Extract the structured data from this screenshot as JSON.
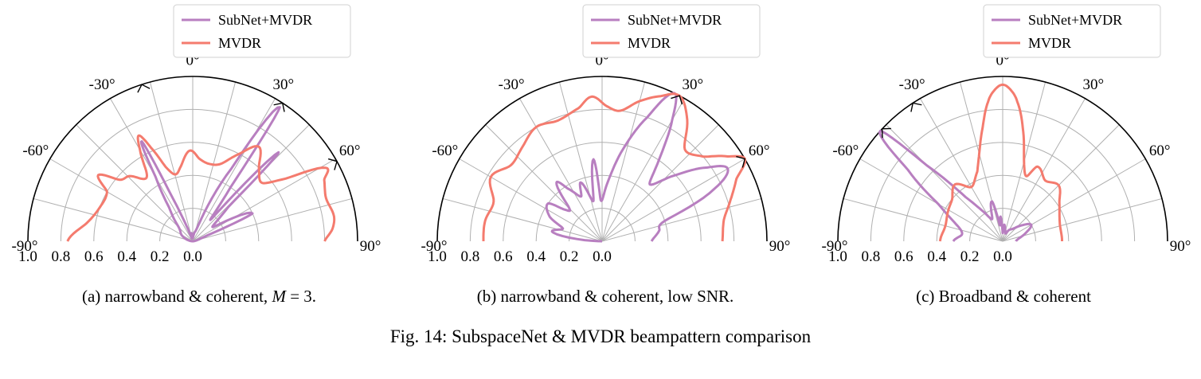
{
  "figure": {
    "caption": "Fig. 14: SubspaceNet & MVDR beampattern comparison",
    "subcaptions": [
      {
        "prefix": "(a) narrowband & coherent, ",
        "var": "M",
        "suffix": " = 3."
      },
      {
        "prefix": "(b) narrowband & coherent, low SNR.",
        "var": "",
        "suffix": ""
      },
      {
        "prefix": "(c) Broadband & coherent",
        "var": "",
        "suffix": ""
      }
    ]
  },
  "colors": {
    "subnet": "#b87fc0",
    "mvdr": "#f47b6e",
    "grid": "#b0b0b0",
    "axis": "#000000"
  },
  "chart_data": [
    {
      "type": "polar-line",
      "theta_range_deg": [
        -90,
        90
      ],
      "theta_ticks": [
        "-90°",
        "-60°",
        "-30°",
        "0°",
        "30°",
        "60°",
        "90°"
      ],
      "r_ticks": [
        "1.0",
        "0.8",
        "0.6",
        "0.4",
        "0.2",
        "0.0"
      ],
      "r_range": [
        0,
        1
      ],
      "grid": true,
      "legend_position": "top-center",
      "true_doa_markers_deg": [
        -18,
        33,
        61
      ],
      "series": [
        {
          "name": "SubNet+MVDR",
          "color_key": "subnet",
          "points": [
            [
              -90,
              0.0
            ],
            [
              -80,
              0.02
            ],
            [
              -70,
              0.05
            ],
            [
              -60,
              0.08
            ],
            [
              -45,
              0.12
            ],
            [
              -35,
              0.25
            ],
            [
              -30,
              0.45
            ],
            [
              -27,
              0.68
            ],
            [
              -25,
              0.3
            ],
            [
              -22,
              0.1
            ],
            [
              -18,
              0.02
            ],
            [
              -10,
              0.05
            ],
            [
              -5,
              0.03
            ],
            [
              0,
              0.02
            ],
            [
              10,
              0.05
            ],
            [
              20,
              0.12
            ],
            [
              28,
              0.5
            ],
            [
              33,
              0.97
            ],
            [
              35,
              0.4
            ],
            [
              40,
              0.18
            ],
            [
              44,
              0.75
            ],
            [
              46,
              0.3
            ],
            [
              55,
              0.15
            ],
            [
              65,
              0.4
            ],
            [
              68,
              0.1
            ],
            [
              75,
              0.03
            ],
            [
              90,
              0.0
            ]
          ]
        },
        {
          "name": "MVDR",
          "color_key": "mvdr",
          "points": [
            [
              -90,
              0.76
            ],
            [
              -80,
              0.65
            ],
            [
              -70,
              0.6
            ],
            [
              -60,
              0.6
            ],
            [
              -55,
              0.7
            ],
            [
              -50,
              0.58
            ],
            [
              -44,
              0.55
            ],
            [
              -38,
              0.48
            ],
            [
              -34,
              0.5
            ],
            [
              -30,
              0.64
            ],
            [
              -27,
              0.72
            ],
            [
              -24,
              0.62
            ],
            [
              -20,
              0.48
            ],
            [
              -15,
              0.42
            ],
            [
              -10,
              0.45
            ],
            [
              -2,
              0.55
            ],
            [
              5,
              0.5
            ],
            [
              12,
              0.48
            ],
            [
              20,
              0.5
            ],
            [
              28,
              0.6
            ],
            [
              35,
              0.7
            ],
            [
              42,
              0.6
            ],
            [
              50,
              0.55
            ],
            [
              56,
              0.68
            ],
            [
              61,
              0.92
            ],
            [
              65,
              0.88
            ],
            [
              72,
              0.85
            ],
            [
              80,
              0.87
            ],
            [
              85,
              0.85
            ],
            [
              90,
              0.8
            ]
          ]
        }
      ]
    },
    {
      "type": "polar-line",
      "theta_range_deg": [
        -90,
        90
      ],
      "theta_ticks": [
        "-90°",
        "-60°",
        "-30°",
        "0°",
        "30°",
        "60°",
        "90°"
      ],
      "r_ticks": [
        "1.0",
        "0.8",
        "0.6",
        "0.4",
        "0.2",
        "0.0"
      ],
      "r_range": [
        0,
        1
      ],
      "grid": true,
      "legend_position": "top-center",
      "true_doa_markers_deg": [
        28,
        60
      ],
      "series": [
        {
          "name": "SubNet+MVDR",
          "color_key": "subnet",
          "points": [
            [
              -90,
              0.0
            ],
            [
              -80,
              0.3
            ],
            [
              -72,
              0.25
            ],
            [
              -65,
              0.35
            ],
            [
              -55,
              0.4
            ],
            [
              -50,
              0.3
            ],
            [
              -45,
              0.28
            ],
            [
              -38,
              0.45
            ],
            [
              -33,
              0.38
            ],
            [
              -25,
              0.3
            ],
            [
              -20,
              0.38
            ],
            [
              -12,
              0.25
            ],
            [
              -6,
              0.5
            ],
            [
              -2,
              0.25
            ],
            [
              5,
              0.35
            ],
            [
              12,
              0.55
            ],
            [
              20,
              0.8
            ],
            [
              26,
              1.0
            ],
            [
              30,
              0.85
            ],
            [
              35,
              0.6
            ],
            [
              40,
              0.45
            ],
            [
              48,
              0.6
            ],
            [
              55,
              0.78
            ],
            [
              60,
              0.88
            ],
            [
              65,
              0.75
            ],
            [
              72,
              0.4
            ],
            [
              80,
              0.35
            ],
            [
              90,
              0.3
            ]
          ]
        },
        {
          "name": "MVDR",
          "color_key": "mvdr",
          "points": [
            [
              -90,
              0.72
            ],
            [
              -80,
              0.72
            ],
            [
              -70,
              0.7
            ],
            [
              -60,
              0.78
            ],
            [
              -50,
              0.72
            ],
            [
              -40,
              0.75
            ],
            [
              -30,
              0.8
            ],
            [
              -20,
              0.78
            ],
            [
              -10,
              0.82
            ],
            [
              -4,
              0.88
            ],
            [
              2,
              0.82
            ],
            [
              8,
              0.8
            ],
            [
              15,
              0.88
            ],
            [
              22,
              0.95
            ],
            [
              28,
              1.0
            ],
            [
              35,
              0.9
            ],
            [
              42,
              0.75
            ],
            [
              50,
              0.8
            ],
            [
              56,
              0.92
            ],
            [
              60,
              1.0
            ],
            [
              65,
              0.9
            ],
            [
              72,
              0.82
            ],
            [
              80,
              0.75
            ],
            [
              90,
              0.73
            ]
          ]
        }
      ]
    },
    {
      "type": "polar-line",
      "theta_range_deg": [
        -90,
        90
      ],
      "theta_ticks": [
        "-90°",
        "-60°",
        "-30°",
        "0°",
        "30°",
        "60°",
        "90°"
      ],
      "r_ticks": [
        "1.0",
        "0.8",
        "0.6",
        "0.4",
        "0.2",
        "0.0"
      ],
      "r_range": [
        0,
        1
      ],
      "grid": true,
      "legend_position": "top-center",
      "true_doa_markers_deg": [
        -47,
        -33
      ],
      "series": [
        {
          "name": "SubNet+MVDR",
          "color_key": "subnet",
          "points": [
            [
              -90,
              0.3
            ],
            [
              -80,
              0.25
            ],
            [
              -70,
              0.3
            ],
            [
              -60,
              0.45
            ],
            [
              -53,
              0.72
            ],
            [
              -48,
              1.0
            ],
            [
              -45,
              0.65
            ],
            [
              -40,
              0.35
            ],
            [
              -32,
              0.2
            ],
            [
              -25,
              0.15
            ],
            [
              -15,
              0.25
            ],
            [
              -10,
              0.1
            ],
            [
              -5,
              0.15
            ],
            [
              0,
              0.05
            ],
            [
              5,
              0.1
            ],
            [
              10,
              0.08
            ],
            [
              20,
              0.05
            ],
            [
              30,
              0.08
            ],
            [
              40,
              0.1
            ],
            [
              50,
              0.15
            ],
            [
              60,
              0.2
            ],
            [
              70,
              0.15
            ],
            [
              80,
              0.1
            ],
            [
              90,
              0.08
            ]
          ]
        },
        {
          "name": "MVDR",
          "color_key": "mvdr",
          "points": [
            [
              -90,
              0.38
            ],
            [
              -75,
              0.36
            ],
            [
              -60,
              0.38
            ],
            [
              -50,
              0.4
            ],
            [
              -40,
              0.45
            ],
            [
              -30,
              0.38
            ],
            [
              -20,
              0.45
            ],
            [
              -15,
              0.55
            ],
            [
              -10,
              0.7
            ],
            [
              -6,
              0.85
            ],
            [
              -3,
              0.92
            ],
            [
              0,
              0.95
            ],
            [
              3,
              0.92
            ],
            [
              6,
              0.85
            ],
            [
              10,
              0.7
            ],
            [
              15,
              0.5
            ],
            [
              20,
              0.42
            ],
            [
              25,
              0.5
            ],
            [
              35,
              0.45
            ],
            [
              45,
              0.48
            ],
            [
              55,
              0.42
            ],
            [
              65,
              0.38
            ],
            [
              75,
              0.36
            ],
            [
              90,
              0.36
            ]
          ]
        }
      ]
    }
  ]
}
